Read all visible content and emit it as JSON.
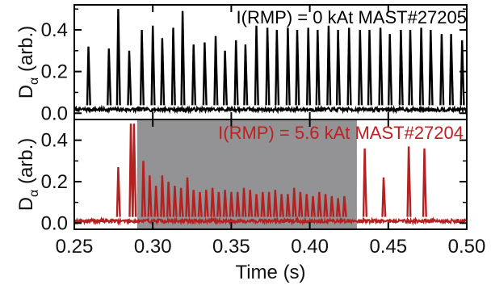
{
  "chart_data": [
    {
      "type": "line",
      "panel": "top",
      "annotation": "I(RMP) = 0 kAt MAST#27205",
      "annotation_color": "#000000",
      "line_color": "#000000",
      "ylabel_main": "D",
      "ylabel_sub": "α",
      "ylabel_tail": " (arb.)",
      "xlim": [
        0.25,
        0.5
      ],
      "ylim": [
        -0.03,
        0.52
      ],
      "yticks": [
        0.0,
        0.2,
        0.4
      ],
      "ytick_labels": [
        "0.0",
        "0.2",
        "0.4"
      ],
      "baseline": 0.018,
      "elm_spikes": {
        "times": [
          0.259,
          0.272,
          0.278,
          0.285,
          0.293,
          0.3,
          0.306,
          0.313,
          0.319,
          0.326,
          0.333,
          0.34,
          0.346,
          0.353,
          0.359,
          0.366,
          0.373,
          0.379,
          0.386,
          0.392,
          0.399,
          0.405,
          0.412,
          0.418,
          0.425,
          0.432,
          0.438,
          0.445,
          0.451,
          0.458,
          0.464,
          0.471,
          0.477,
          0.484,
          0.49,
          0.497
        ],
        "peaks": [
          0.32,
          0.31,
          0.5,
          0.3,
          0.4,
          0.42,
          0.36,
          0.41,
          0.49,
          0.33,
          0.34,
          0.37,
          0.3,
          0.35,
          0.33,
          0.42,
          0.41,
          0.4,
          0.41,
          0.4,
          0.41,
          0.4,
          0.42,
          0.4,
          0.41,
          0.4,
          0.4,
          0.41,
          0.38,
          0.4,
          0.4,
          0.41,
          0.4,
          0.38,
          0.38,
          0.35
        ]
      }
    },
    {
      "type": "line",
      "panel": "bottom",
      "annotation": "I(RMP) = 5.6 kAt MAST#27204",
      "annotation_color": "#c02020",
      "line_color": "#b52020",
      "ylabel_main": "D",
      "ylabel_sub": "α",
      "ylabel_tail": " (arb.)",
      "xlabel": "Time (s)",
      "xlim": [
        0.25,
        0.5
      ],
      "ylim": [
        -0.03,
        0.5
      ],
      "yticks": [
        0.0,
        0.2,
        0.4
      ],
      "ytick_labels": [
        "0.0",
        "0.2",
        "0.4"
      ],
      "xticks": [
        0.25,
        0.3,
        0.35,
        0.4,
        0.45,
        0.5
      ],
      "xtick_labels": [
        "0.25",
        "0.30",
        "0.35",
        "0.40",
        "0.45",
        "0.50"
      ],
      "shaded_interval": [
        0.29,
        0.43
      ],
      "shade_color": "#939396",
      "baseline": 0.01,
      "elm_spikes": {
        "times": [
          0.278,
          0.286,
          0.288,
          0.294,
          0.298,
          0.302,
          0.306,
          0.31,
          0.314,
          0.318,
          0.322,
          0.326,
          0.33,
          0.334,
          0.338,
          0.342,
          0.346,
          0.35,
          0.354,
          0.358,
          0.362,
          0.366,
          0.37,
          0.374,
          0.378,
          0.382,
          0.386,
          0.39,
          0.394,
          0.398,
          0.402,
          0.406,
          0.41,
          0.414,
          0.418,
          0.422,
          0.435,
          0.447,
          0.463,
          0.473
        ],
        "peaks": [
          0.27,
          0.48,
          0.48,
          0.3,
          0.23,
          0.18,
          0.23,
          0.2,
          0.18,
          0.17,
          0.22,
          0.16,
          0.15,
          0.16,
          0.17,
          0.15,
          0.16,
          0.15,
          0.15,
          0.17,
          0.16,
          0.14,
          0.15,
          0.15,
          0.16,
          0.14,
          0.14,
          0.17,
          0.15,
          0.14,
          0.13,
          0.15,
          0.14,
          0.13,
          0.12,
          0.13,
          0.36,
          0.22,
          0.37,
          0.36
        ]
      }
    }
  ]
}
